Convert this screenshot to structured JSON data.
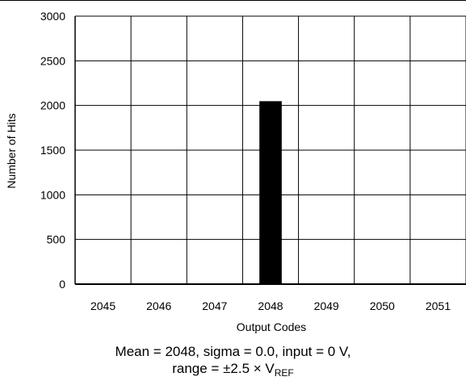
{
  "chart_data": {
    "type": "bar",
    "categories": [
      "2045",
      "2046",
      "2047",
      "2048",
      "2049",
      "2050",
      "2051"
    ],
    "values": [
      0,
      0,
      0,
      2048,
      0,
      0,
      0
    ],
    "xlabel": "Output Codes",
    "ylabel": "Number of Hits",
    "ylim": [
      0,
      3000
    ],
    "yticks": [
      "0",
      "500",
      "1000",
      "1500",
      "2000",
      "2500",
      "3000"
    ],
    "grid": true,
    "bar_color": "#000000",
    "caption_line1": "Mean = 2048, sigma = 0.0, input = 0 V,",
    "caption_line2_main": "range = ±2.5 × V",
    "caption_line2_sub": "REF"
  }
}
